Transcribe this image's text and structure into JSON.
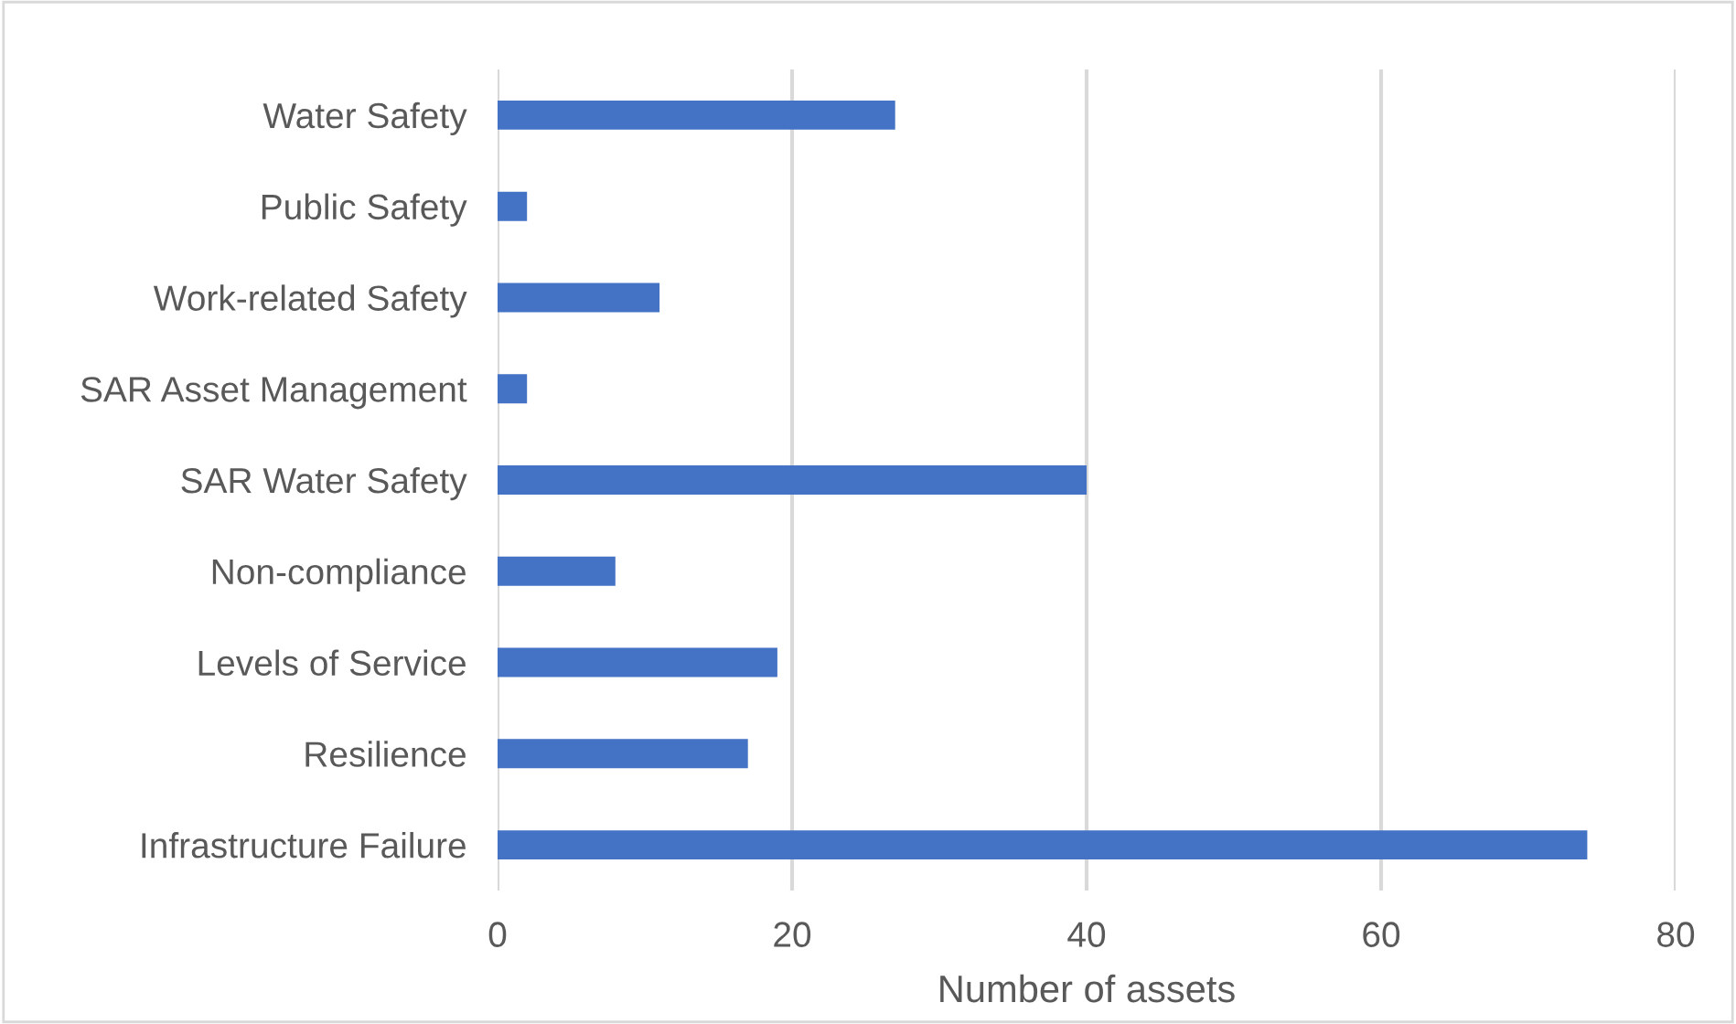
{
  "chart_data": {
    "type": "bar",
    "orientation": "horizontal",
    "xlabel": "Number of assets",
    "categories": [
      "Water Safety",
      "Public Safety",
      "Work-related Safety",
      "SAR Asset Management",
      "SAR Water Safety",
      "Non-compliance",
      "Levels of Service",
      "Resilience",
      "Infrastructure Failure"
    ],
    "values": [
      27,
      2,
      11,
      2,
      40,
      8,
      19,
      17,
      74
    ],
    "color": "#4472c4",
    "xlim": [
      0,
      80
    ],
    "xticks": [
      0,
      20,
      40,
      60,
      80
    ],
    "grid": "x",
    "legend": false
  }
}
